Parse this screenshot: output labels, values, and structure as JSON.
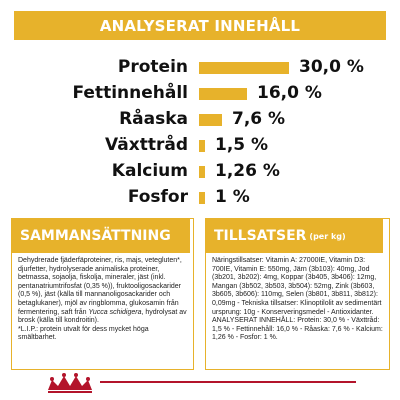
{
  "banner": {
    "title": "ANALYSERAT INNEHÅLL"
  },
  "nutrients": [
    {
      "label": "Protein",
      "value": "30,0 %",
      "fraction": 0.3
    },
    {
      "label": "Fettinnehåll",
      "value": "16,0 %",
      "fraction": 0.16
    },
    {
      "label": "Råaska",
      "value": "7,6 %",
      "fraction": 0.076
    },
    {
      "label": "Växttråd",
      "value": "1,5 %",
      "fraction": 0.015
    },
    {
      "label": "Kalcium",
      "value": "1,26 %",
      "fraction": 0.0126
    },
    {
      "label": "Fosfor",
      "value": "1 %",
      "fraction": 0.01
    }
  ],
  "composition": {
    "title": "SAMMANSÄTTNING",
    "text_main": "Dehydrerade fjäderfäproteiner, ris, majs, vetegluten*, djurfetter, hydrolyserade animaliska proteiner, betmassa, sojaolja, fiskolja, mineraler, jäst (inkl. pentanatriumtrifosfat (0,35 %)), fruktooligosackarider (0,5 %), jäst (källa till mannanoligosackarider och betaglukaner), mjöl av ringblomma, glukosamin från fermentering, saft från",
    "text_italic": "Yucca schidigera",
    "text_after_italic": ", hydrolysat av brosk (källa till kondroitin).",
    "text_note": "*L.I.P.: protein utvalt för dess mycket höga smältbarhet."
  },
  "additives": {
    "title": "TILLSATSER",
    "subtitle": "(per kg)",
    "text": "Näringstillsatser: Vitamin A: 27000IE, Vitamin D3: 700IE, Vitamin E: 550mg, Järn (3b103): 40mg, Jod (3b201, 3b202): 4mg, Koppar (3b405, 3b406): 12mg, Mangan (3b502, 3b503, 3b504): 52mg, Zink (3b603, 3b605, 3b606): 110mg, Selen (3b801, 3b811, 3b812): 0,09mg - Tekniska tillsatser: Klinoptilolit av sedimentärt ursprung: 10g - Konserveringsmedel - Antioxidanter.",
    "text_second": "ANALYSERAT INNEHÅLL: Protein: 30,0 % - Växttråd: 1,5 % - Fettinnehåll: 16,0 % - Råaska: 7,6 % - Kalcium: 1,26 % - Fosfor: 1 %."
  },
  "colors": {
    "accent": "#E7B22B",
    "brand_red": "#B3142B"
  },
  "footer": {
    "logo_icon": "royal-canin-crown-icon"
  }
}
